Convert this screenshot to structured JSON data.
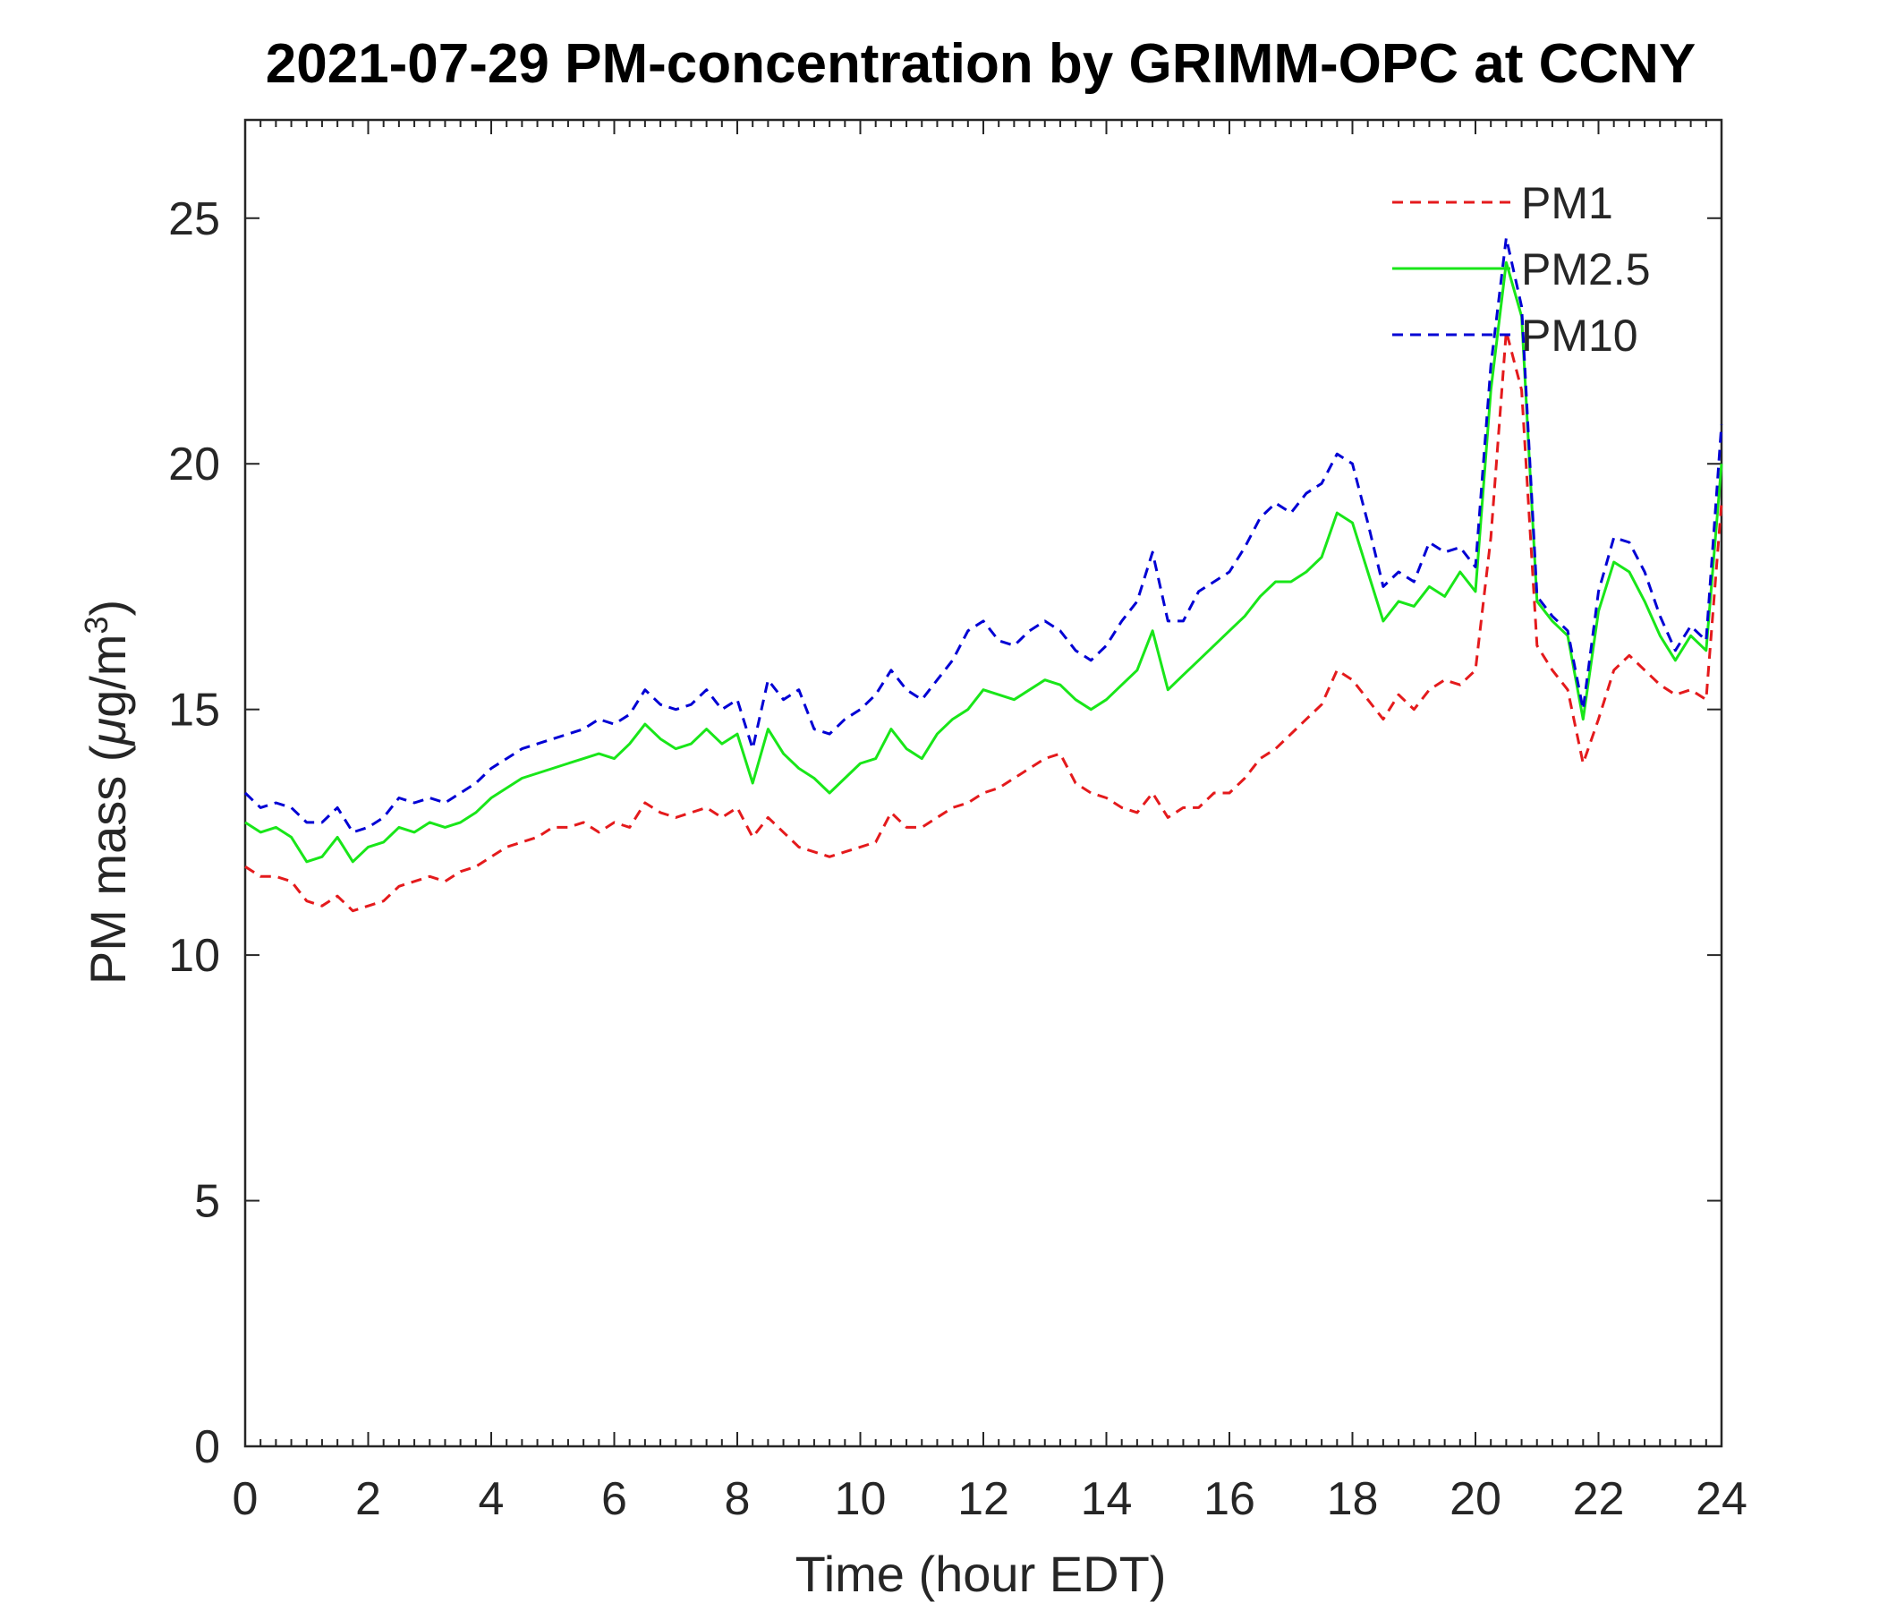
{
  "chart_data": {
    "type": "line",
    "title": "2021-07-29 PM-concentration by GRIMM-OPC at CCNY",
    "xlabel": "Time (hour EDT)",
    "ylabel": {
      "main": "PM mass (",
      "mu": "μ",
      "unit": "g/m",
      "exp": "3",
      "close": ")"
    },
    "xlim": [
      0,
      24
    ],
    "ylim": [
      0,
      27
    ],
    "xticks": [
      "0",
      "2",
      "4",
      "6",
      "8",
      "10",
      "12",
      "14",
      "16",
      "18",
      "20",
      "22",
      "24"
    ],
    "yticks": [
      "0",
      "5",
      "10",
      "15",
      "20",
      "25"
    ],
    "legend_position": "top-right",
    "grid": false,
    "x": [
      0,
      0.25,
      0.5,
      0.75,
      1.0,
      1.25,
      1.5,
      1.75,
      2.0,
      2.25,
      2.5,
      2.75,
      3.0,
      3.25,
      3.5,
      3.75,
      4.0,
      4.25,
      4.5,
      4.75,
      5.0,
      5.25,
      5.5,
      5.75,
      6.0,
      6.25,
      6.5,
      6.75,
      7.0,
      7.25,
      7.5,
      7.75,
      8.0,
      8.25,
      8.5,
      8.75,
      9.0,
      9.25,
      9.5,
      9.75,
      10.0,
      10.25,
      10.5,
      10.75,
      11.0,
      11.25,
      11.5,
      11.75,
      12.0,
      12.25,
      12.5,
      12.75,
      13.0,
      13.25,
      13.5,
      13.75,
      14.0,
      14.25,
      14.5,
      14.75,
      15.0,
      15.25,
      15.5,
      15.75,
      16.0,
      16.25,
      16.5,
      16.75,
      17.0,
      17.25,
      17.5,
      17.75,
      18.0,
      18.25,
      18.5,
      18.75,
      19.0,
      19.25,
      19.5,
      19.75,
      20.0,
      20.25,
      20.5,
      20.75,
      21.0,
      21.25,
      21.5,
      21.75,
      22.0,
      22.25,
      22.5,
      22.75,
      23.0,
      23.25,
      23.5,
      23.75,
      24.0
    ],
    "series": [
      {
        "name": "PM1",
        "color": "#e41a1c",
        "style": "dashed",
        "values": [
          11.8,
          11.6,
          11.6,
          11.5,
          11.1,
          11.0,
          11.2,
          10.9,
          11.0,
          11.1,
          11.4,
          11.5,
          11.6,
          11.5,
          11.7,
          11.8,
          12.0,
          12.2,
          12.3,
          12.4,
          12.6,
          12.6,
          12.7,
          12.5,
          12.7,
          12.6,
          13.1,
          12.9,
          12.8,
          12.9,
          13.0,
          12.8,
          13.0,
          12.4,
          12.8,
          12.5,
          12.2,
          12.1,
          12.0,
          12.1,
          12.2,
          12.3,
          12.9,
          12.6,
          12.6,
          12.8,
          13.0,
          13.1,
          13.3,
          13.4,
          13.6,
          13.8,
          14.0,
          14.1,
          13.5,
          13.3,
          13.2,
          13.0,
          12.9,
          13.3,
          12.8,
          13.0,
          13.0,
          13.3,
          13.3,
          13.6,
          14.0,
          14.2,
          14.5,
          14.8,
          15.1,
          15.8,
          15.6,
          15.2,
          14.8,
          15.3,
          15.0,
          15.4,
          15.6,
          15.5,
          15.8,
          18.5,
          22.7,
          21.5,
          16.3,
          15.8,
          15.4,
          13.9,
          14.8,
          15.8,
          16.1,
          15.8,
          15.5,
          15.3,
          15.4,
          15.2,
          19.2
        ]
      },
      {
        "name": "PM2.5",
        "color": "#19e619",
        "style": "solid",
        "values": [
          12.7,
          12.5,
          12.6,
          12.4,
          11.9,
          12.0,
          12.4,
          11.9,
          12.2,
          12.3,
          12.6,
          12.5,
          12.7,
          12.6,
          12.7,
          12.9,
          13.2,
          13.4,
          13.6,
          13.7,
          13.8,
          13.9,
          14.0,
          14.1,
          14.0,
          14.3,
          14.7,
          14.4,
          14.2,
          14.3,
          14.6,
          14.3,
          14.5,
          13.5,
          14.6,
          14.1,
          13.8,
          13.6,
          13.3,
          13.6,
          13.9,
          14.0,
          14.6,
          14.2,
          14.0,
          14.5,
          14.8,
          15.0,
          15.4,
          15.3,
          15.2,
          15.4,
          15.6,
          15.5,
          15.2,
          15.0,
          15.2,
          15.5,
          15.8,
          16.6,
          15.4,
          15.7,
          16.0,
          16.3,
          16.6,
          16.9,
          17.3,
          17.6,
          17.6,
          17.8,
          18.1,
          19.0,
          18.8,
          17.8,
          16.8,
          17.2,
          17.1,
          17.5,
          17.3,
          17.8,
          17.4,
          21.5,
          24.1,
          23.0,
          17.2,
          16.8,
          16.5,
          14.8,
          17.0,
          18.0,
          17.8,
          17.2,
          16.5,
          16.0,
          16.5,
          16.2,
          20.0
        ]
      },
      {
        "name": "PM10",
        "color": "#0000d4",
        "style": "dashed",
        "values": [
          13.3,
          13.0,
          13.1,
          13.0,
          12.7,
          12.7,
          13.0,
          12.5,
          12.6,
          12.8,
          13.2,
          13.1,
          13.2,
          13.1,
          13.3,
          13.5,
          13.8,
          14.0,
          14.2,
          14.3,
          14.4,
          14.5,
          14.6,
          14.8,
          14.7,
          14.9,
          15.4,
          15.1,
          15.0,
          15.1,
          15.4,
          15.0,
          15.2,
          14.2,
          15.6,
          15.2,
          15.4,
          14.6,
          14.5,
          14.8,
          15.0,
          15.3,
          15.8,
          15.4,
          15.2,
          15.6,
          16.0,
          16.6,
          16.8,
          16.4,
          16.3,
          16.6,
          16.8,
          16.6,
          16.2,
          16.0,
          16.3,
          16.8,
          17.2,
          18.2,
          16.8,
          16.8,
          17.4,
          17.6,
          17.8,
          18.3,
          18.9,
          19.2,
          19.0,
          19.4,
          19.6,
          20.2,
          20.0,
          18.8,
          17.5,
          17.8,
          17.6,
          18.4,
          18.2,
          18.3,
          17.9,
          22.0,
          24.6,
          23.2,
          17.3,
          16.9,
          16.6,
          15.0,
          17.4,
          18.5,
          18.4,
          17.8,
          16.9,
          16.2,
          16.7,
          16.4,
          20.8
        ]
      }
    ]
  }
}
